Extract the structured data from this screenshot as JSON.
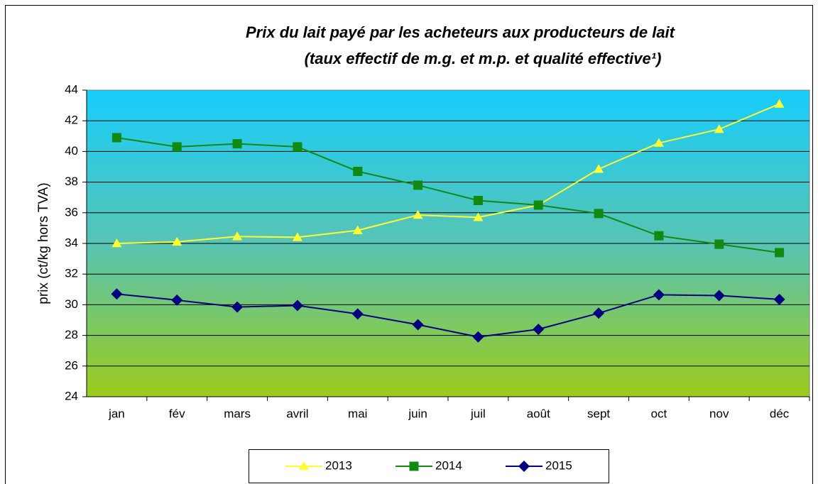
{
  "chart_data": {
    "type": "line",
    "title": [
      "Prix du lait payé par les acheteurs aux producteurs de lait",
      "(taux effectif de m.g. et m.p. et qualité effective¹)"
    ],
    "y_label": "prix (ct/kg hors TVA)",
    "categories": [
      "jan",
      "fév",
      "mars",
      "avril",
      "mai",
      "juin",
      "juil",
      "août",
      "sept",
      "oct",
      "nov",
      "déc"
    ],
    "series": [
      {
        "name": "2013",
        "color": "#ffff33",
        "marker": "triangle",
        "values": [
          34.0,
          34.1,
          34.45,
          34.4,
          34.85,
          35.85,
          35.7,
          36.5,
          38.85,
          40.55,
          41.45,
          43.1
        ]
      },
      {
        "name": "2014",
        "color": "#108a10",
        "marker": "square",
        "values": [
          40.9,
          40.3,
          40.5,
          40.3,
          38.7,
          37.8,
          36.8,
          36.5,
          35.95,
          34.5,
          33.95,
          33.4
        ]
      },
      {
        "name": "2015",
        "color": "#000080",
        "marker": "diamond",
        "values": [
          30.7,
          30.3,
          29.85,
          29.95,
          29.4,
          28.7,
          27.9,
          28.4,
          29.45,
          30.65,
          30.6,
          30.35
        ]
      }
    ],
    "ylim": [
      24,
      44
    ],
    "yticks": [
      24,
      26,
      28,
      30,
      32,
      34,
      36,
      38,
      40,
      42,
      44
    ],
    "grid": true,
    "legend": "bottom"
  }
}
